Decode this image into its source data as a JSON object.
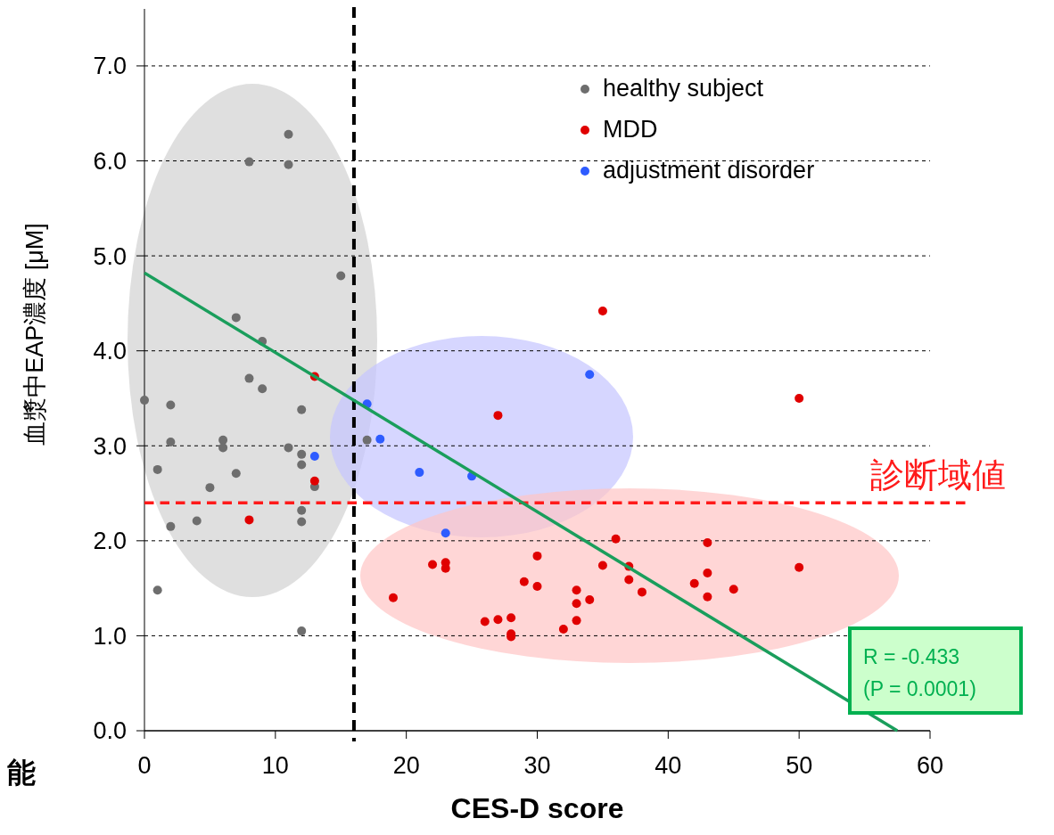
{
  "chart_data": {
    "type": "scatter",
    "xlabel": "CES-D score",
    "ylabel": "血漿中EAP濃度 [μM]",
    "xlim": [
      0,
      60
    ],
    "xticks": [
      0,
      10,
      20,
      30,
      40,
      50,
      60
    ],
    "ylim": [
      0,
      7.6
    ],
    "yticks": [
      {
        "value": 0,
        "label": "0.0"
      },
      {
        "value": 1,
        "label": "1.0"
      },
      {
        "value": 2,
        "label": "2.0"
      },
      {
        "value": 3,
        "label": "3.0"
      },
      {
        "value": 4,
        "label": "4.0"
      },
      {
        "value": 5,
        "label": "5.0"
      },
      {
        "value": 6,
        "label": "6.0"
      },
      {
        "value": 7,
        "label": "7.0"
      }
    ],
    "grid": "y",
    "legend": "top right",
    "marker": "circle",
    "series": [
      {
        "name": "healthy subject",
        "color": "#6e6e6e",
        "x": [
          0,
          1,
          1,
          2,
          2,
          2,
          4,
          5,
          6,
          6,
          7,
          7,
          8,
          8,
          9,
          9,
          11,
          11,
          11,
          12,
          12,
          12,
          12,
          12,
          12,
          13,
          15,
          17
        ],
        "values": [
          3.48,
          2.75,
          1.48,
          3.43,
          3.04,
          2.15,
          2.21,
          2.56,
          3.06,
          2.98,
          4.35,
          2.71,
          5.99,
          3.71,
          4.1,
          3.6,
          6.28,
          5.96,
          2.98,
          3.38,
          2.91,
          2.8,
          2.32,
          2.2,
          1.05,
          2.57,
          4.79,
          3.06
        ]
      },
      {
        "name": "MDD",
        "color": "#e00000",
        "x": [
          8,
          13,
          13,
          27,
          35,
          50,
          19,
          22,
          23,
          23,
          26,
          27,
          28,
          28,
          28,
          29,
          30,
          30,
          32,
          33,
          33,
          33,
          34,
          35,
          36,
          37,
          37,
          38,
          42,
          43,
          43,
          43,
          45,
          50
        ],
        "values": [
          2.22,
          3.73,
          2.63,
          3.32,
          4.42,
          3.5,
          1.4,
          1.75,
          1.77,
          1.71,
          1.15,
          1.17,
          1.19,
          1.02,
          0.99,
          1.57,
          1.84,
          1.52,
          1.07,
          1.48,
          1.34,
          1.16,
          1.38,
          1.74,
          2.02,
          1.73,
          1.59,
          1.46,
          1.55,
          1.98,
          1.66,
          1.41,
          1.49,
          1.72
        ]
      },
      {
        "name": "adjustment disorder",
        "color": "#2e5cff",
        "x": [
          13,
          17,
          18,
          21,
          23,
          25,
          34
        ],
        "values": [
          2.89,
          3.44,
          3.07,
          2.72,
          2.08,
          2.68,
          3.75
        ]
      },
      {
        "type": "line",
        "color": "#1a9e5c",
        "x": [
          0,
          57.5
        ],
        "values": [
          4.82,
          0
        ],
        "marker": "none"
      }
    ],
    "ref_lines": [
      {
        "axis": "x",
        "value": 16,
        "color": "#000000",
        "line_style": "dashed"
      },
      {
        "axis": "y",
        "value": 2.4,
        "label": "診断域値",
        "color": "#ff1a1a",
        "line_style": "dashed"
      }
    ],
    "annotations": [
      "R = -0.433",
      "(P = 0.0001)",
      "能"
    ]
  }
}
